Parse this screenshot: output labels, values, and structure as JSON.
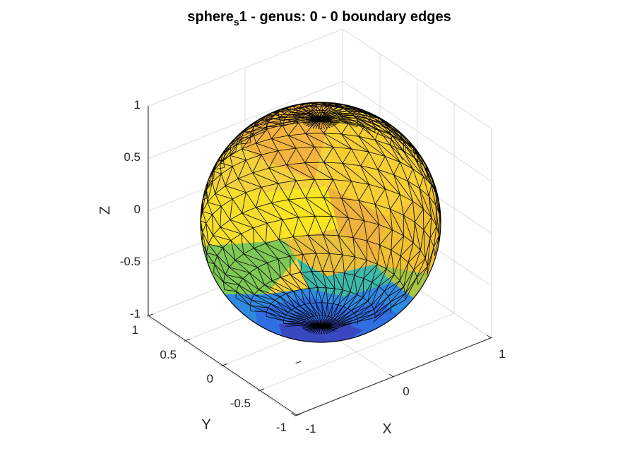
{
  "chart_data": {
    "type": "surface",
    "title": {
      "prefix": "sphere",
      "subscript": "s",
      "suffix": "1 - genus: 0 - 0 boundary edges"
    },
    "xlabel": "X",
    "ylabel": "Y",
    "zlabel": "Z",
    "xlim": [
      -1,
      1
    ],
    "ylim": [
      -1,
      1
    ],
    "zlim": [
      -1,
      1
    ],
    "x_ticks": [
      "-1",
      "0",
      "1"
    ],
    "y_ticks": [
      "-1",
      "-0.5",
      "0",
      "0.5",
      "1"
    ],
    "z_ticks": [
      "-1",
      "-0.5",
      "0",
      "0.5",
      "1"
    ],
    "grid": true,
    "shape": "unit sphere triangle mesh",
    "genus": 0,
    "boundary_edges": 0,
    "colormap": [
      "#3e26a8",
      "#2c7fea",
      "#16b8c3",
      "#6fcc58",
      "#d3bf3a",
      "#f6a73a",
      "#f9e520"
    ],
    "edge_color": "#000000"
  }
}
